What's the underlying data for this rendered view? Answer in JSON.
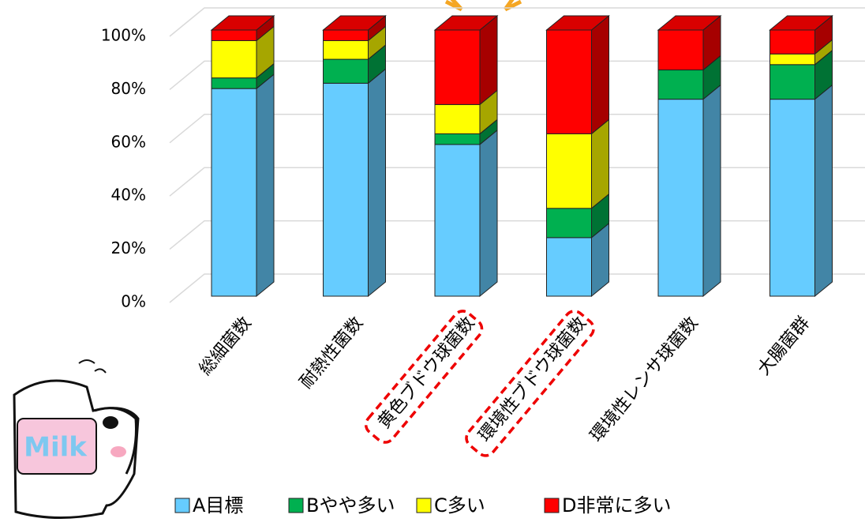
{
  "chart_data": {
    "type": "stacked-bar-3d",
    "categories": [
      "総細菌数",
      "耐熱性菌数",
      "黄色ブドウ球菌数",
      "環境性ブドウ球菌数",
      "環境性レンサ球菌数",
      "大腸菌群"
    ],
    "series": [
      {
        "name": "A目標",
        "color": "#66ccff",
        "values": [
          78,
          80,
          57,
          22,
          74,
          74
        ]
      },
      {
        "name": "Bやや多い",
        "color": "#00b050",
        "values": [
          4,
          9,
          4,
          11,
          11,
          13
        ]
      },
      {
        "name": "C多い",
        "color": "#ffff00",
        "values": [
          14,
          7,
          11,
          28,
          0,
          4
        ]
      },
      {
        "name": "D非常に多い",
        "color": "#ff0000",
        "values": [
          4,
          4,
          28,
          39,
          15,
          9
        ]
      }
    ],
    "ylim": [
      0,
      100
    ],
    "yticks": [
      {
        "value": 0,
        "label": "0%"
      },
      {
        "value": 20,
        "label": "20%"
      },
      {
        "value": 40,
        "label": "40%"
      },
      {
        "value": 60,
        "label": "60%"
      },
      {
        "value": 80,
        "label": "80%"
      },
      {
        "value": 100,
        "label": "100%"
      }
    ],
    "grid": true,
    "highlighted_categories": [
      2,
      3
    ],
    "decoration_text": "Milk"
  }
}
